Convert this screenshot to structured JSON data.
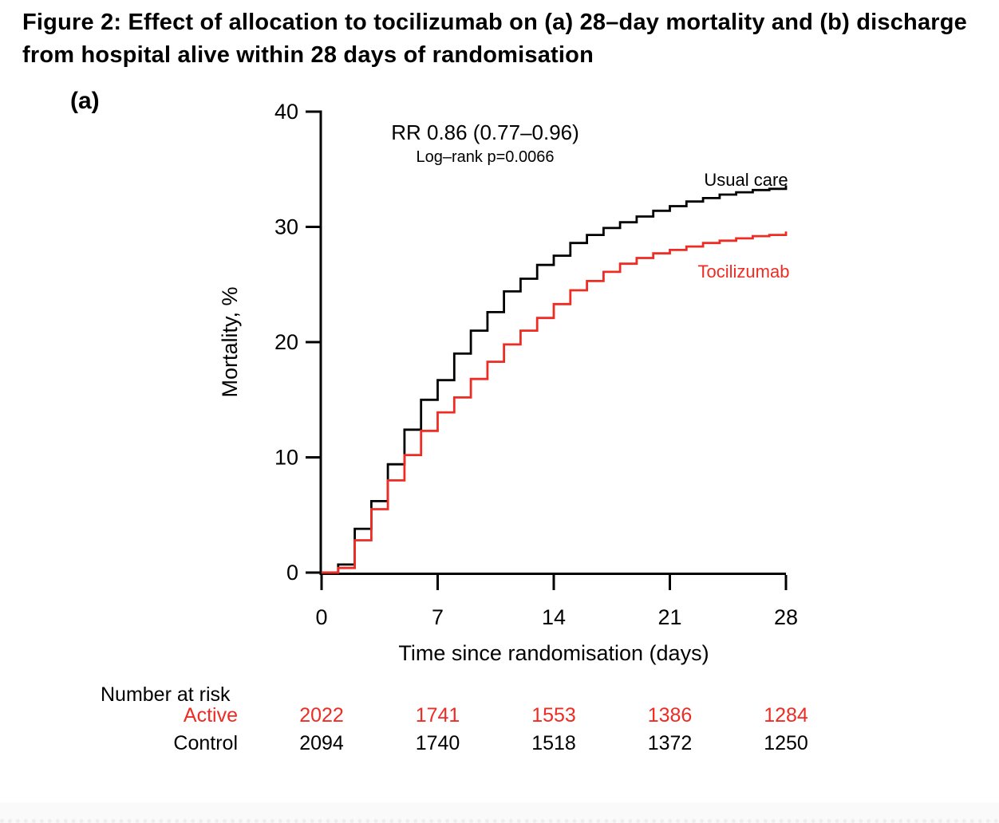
{
  "figure": {
    "title": "Figure 2: Effect of allocation to tocilizumab on (a) 28–day mortality and (b) discharge from hospital alive within 28 days of randomisation",
    "panel_label": "(a)"
  },
  "annotation": {
    "rate_ratio": "RR 0.86 (0.77–0.96)",
    "log_rank": "Log–rank p=0.0066"
  },
  "chart_data": {
    "type": "line",
    "subtype": "kaplan-meier-step",
    "title": "",
    "xlabel": "Time since randomisation (days)",
    "ylabel": "Mortality, %",
    "xlim": [
      0,
      28
    ],
    "ylim": [
      0,
      40
    ],
    "xticks": [
      0,
      7,
      14,
      21,
      28
    ],
    "yticks": [
      0,
      10,
      20,
      30,
      40
    ],
    "grid": false,
    "legend_position": "on-plot",
    "x": [
      0,
      1,
      2,
      3,
      4,
      5,
      6,
      7,
      8,
      9,
      10,
      11,
      12,
      13,
      14,
      15,
      16,
      17,
      18,
      19,
      20,
      21,
      22,
      23,
      24,
      25,
      26,
      27,
      28
    ],
    "series": [
      {
        "name": "Usual care",
        "color": "#000000",
        "values": [
          0,
          0.7,
          3.8,
          6.2,
          9.4,
          12.4,
          15.0,
          16.7,
          19.0,
          21.0,
          22.6,
          24.4,
          25.5,
          26.7,
          27.5,
          28.6,
          29.3,
          29.9,
          30.4,
          30.9,
          31.4,
          31.8,
          32.2,
          32.5,
          32.8,
          33.0,
          33.2,
          33.3,
          33.6
        ]
      },
      {
        "name": "Tocilizumab",
        "color": "#ee2c24",
        "values": [
          0,
          0.4,
          2.8,
          5.5,
          8.0,
          10.2,
          12.3,
          13.9,
          15.2,
          16.8,
          18.3,
          19.8,
          21.0,
          22.1,
          23.3,
          24.5,
          25.3,
          26.1,
          26.8,
          27.3,
          27.7,
          28.0,
          28.3,
          28.6,
          28.8,
          29.0,
          29.2,
          29.3,
          29.6
        ]
      }
    ]
  },
  "risk_table": {
    "heading": "Number at risk",
    "days": [
      0,
      7,
      14,
      21,
      28
    ],
    "rows": [
      {
        "label": "Active",
        "color": "#ee2c24",
        "values": [
          "2022",
          "1741",
          "1553",
          "1386",
          "1284"
        ]
      },
      {
        "label": "Control",
        "color": "#000000",
        "values": [
          "2094",
          "1740",
          "1518",
          "1372",
          "1250"
        ]
      }
    ]
  },
  "colors": {
    "usual_care": "#000000",
    "tocilizumab": "#ee2c24",
    "background": "#ffffff"
  }
}
